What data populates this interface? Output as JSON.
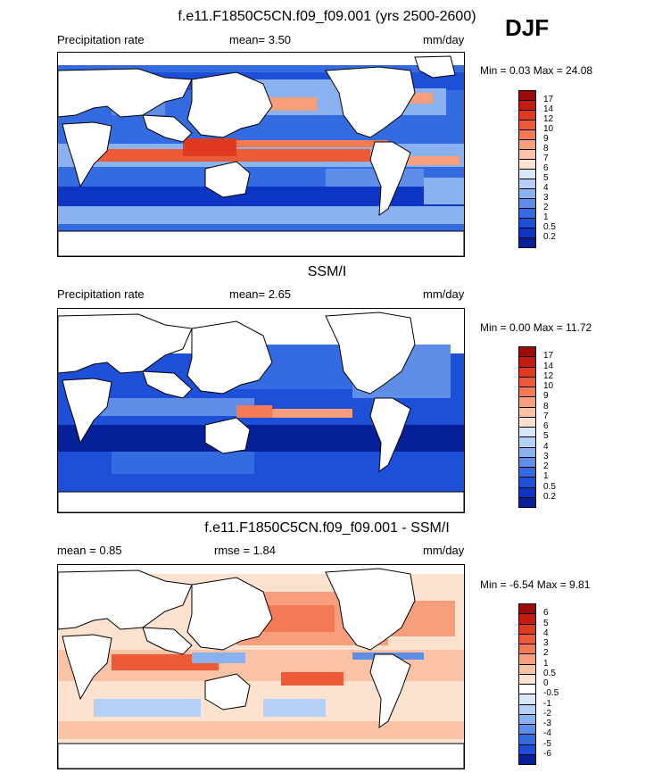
{
  "header": {
    "season": "DJF"
  },
  "panels": [
    {
      "id": "model",
      "title": "f.e11.F1850C5CN.f09_f09.001 (yrs 2500-2600)",
      "left_label": "Precipitation rate",
      "center_label": "mean=  3.50",
      "right_label": "mm/day",
      "minmax": "Min =  0.03 Max =  24.08",
      "colorbar": {
        "labels": [
          "17",
          "14",
          "12",
          "10",
          "9",
          "8",
          "7",
          "6",
          "5",
          "4",
          "3",
          "2",
          "1",
          "0.5",
          "0.2"
        ],
        "colors": [
          "#9b0b0b",
          "#c41b0f",
          "#df3a1f",
          "#ec5a36",
          "#f27a55",
          "#f79e7d",
          "#fbc3a5",
          "#fde2cf",
          "#d8e8fa",
          "#b4d0f6",
          "#8ab2f0",
          "#5e8ee8",
          "#346be0",
          "#1d4fd8",
          "#0e36c4",
          "#06209a"
        ]
      }
    },
    {
      "id": "obs",
      "title": "SSM/I",
      "left_label": "Precipitation rate",
      "center_label": "mean=  2.65",
      "right_label": "mm/day",
      "minmax": "Min =  0.00 Max =  11.72",
      "colorbar": {
        "labels": [
          "17",
          "14",
          "12",
          "10",
          "9",
          "8",
          "7",
          "6",
          "5",
          "4",
          "3",
          "2",
          "1",
          "0.5",
          "0.2"
        ],
        "colors": [
          "#9b0b0b",
          "#c41b0f",
          "#df3a1f",
          "#ec5a36",
          "#f27a55",
          "#f79e7d",
          "#fbc3a5",
          "#fde2cf",
          "#d8e8fa",
          "#b4d0f6",
          "#8ab2f0",
          "#5e8ee8",
          "#346be0",
          "#1d4fd8",
          "#0e36c4",
          "#06209a"
        ]
      }
    },
    {
      "id": "diff",
      "title": "f.e11.F1850C5CN.f09_f09.001 - SSM/I",
      "left_label": "mean =  0.85",
      "center_label": "rmse =  1.84",
      "right_label": "mm/day",
      "minmax": "Min =  -6.54 Max =  9.81",
      "colorbar": {
        "labels": [
          "6",
          "5",
          "4",
          "3",
          "2",
          "1",
          "0.5",
          "0",
          "-0.5",
          "-1",
          "-2",
          "-3",
          "-4",
          "-5",
          "-6"
        ],
        "colors": [
          "#9b0b0b",
          "#c41b0f",
          "#df3a1f",
          "#ec5a36",
          "#f27a55",
          "#f79e7d",
          "#fbc3a5",
          "#fde2cf",
          "#ffffff",
          "#d8e8fa",
          "#b4d0f6",
          "#8ab2f0",
          "#5e8ee8",
          "#346be0",
          "#1d4fd8",
          "#06209a"
        ]
      }
    }
  ]
}
